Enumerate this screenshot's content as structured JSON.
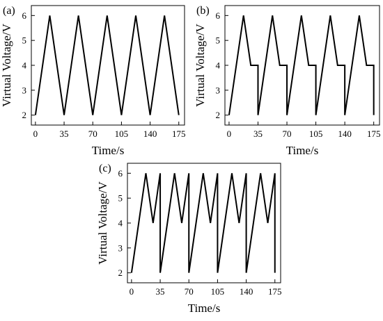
{
  "chart_data": [
    {
      "panel_label": "(a)",
      "type": "line",
      "xlabel": "Time/s",
      "ylabel": "Virtual Voltage/V",
      "xlim": [
        -5,
        182
      ],
      "ylim": [
        1.6,
        6.4
      ],
      "xticks": [
        0,
        35,
        70,
        105,
        140,
        175
      ],
      "yticks": [
        2,
        3,
        4,
        5,
        6
      ],
      "grid": false,
      "series": [
        {
          "x": [
            0,
            17.5,
            35,
            52.5,
            70,
            87.5,
            105,
            122.5,
            140,
            157.5,
            175
          ],
          "y": [
            2,
            6,
            2,
            6,
            2,
            6,
            2,
            6,
            2,
            6,
            2
          ]
        }
      ]
    },
    {
      "panel_label": "(b)",
      "type": "line",
      "xlabel": "Time/s",
      "ylabel": "Virtual Voltage/V",
      "xlim": [
        -5,
        182
      ],
      "ylim": [
        1.6,
        6.4
      ],
      "xticks": [
        0,
        35,
        70,
        105,
        140,
        175
      ],
      "yticks": [
        2,
        3,
        4,
        5,
        6
      ],
      "grid": false,
      "series": [
        {
          "x": [
            0,
            17.5,
            26.3,
            35,
            35,
            52.5,
            61.3,
            70,
            70,
            87.5,
            96.3,
            105,
            105,
            122.5,
            131.3,
            140,
            140,
            157.5,
            166.3,
            175,
            175
          ],
          "y": [
            2,
            6,
            4,
            4,
            2,
            6,
            4,
            4,
            2,
            6,
            4,
            4,
            2,
            6,
            4,
            4,
            2,
            6,
            4,
            4,
            2
          ]
        }
      ]
    },
    {
      "panel_label": "(c)",
      "type": "line",
      "xlabel": "Time/s",
      "ylabel": "Virtual Voltage/V",
      "xlim": [
        -5,
        182
      ],
      "ylim": [
        1.6,
        6.4
      ],
      "xticks": [
        0,
        35,
        70,
        105,
        140,
        175
      ],
      "yticks": [
        2,
        3,
        4,
        5,
        6
      ],
      "grid": false,
      "series": [
        {
          "x": [
            0,
            17.5,
            26.3,
            35,
            35,
            52.5,
            61.3,
            70,
            70,
            87.5,
            96.3,
            105,
            105,
            122.5,
            131.3,
            140,
            140,
            157.5,
            166.3,
            175,
            175
          ],
          "y": [
            2,
            6,
            4,
            6,
            2,
            6,
            4,
            6,
            2,
            6,
            4,
            6,
            2,
            6,
            4,
            6,
            2,
            6,
            4,
            6,
            2
          ]
        }
      ]
    }
  ]
}
